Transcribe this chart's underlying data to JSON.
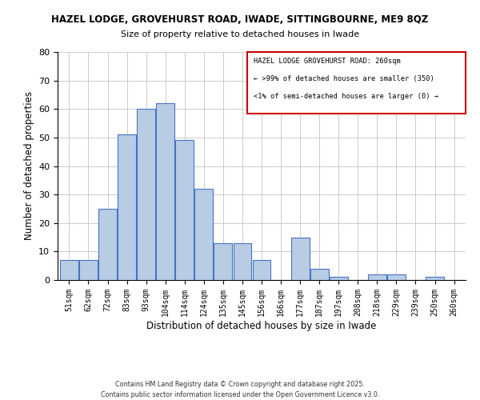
{
  "title1": "HAZEL LODGE, GROVEHURST ROAD, IWADE, SITTINGBOURNE, ME9 8QZ",
  "title2": "Size of property relative to detached houses in Iwade",
  "xlabel": "Distribution of detached houses by size in Iwade",
  "ylabel": "Number of detached properties",
  "bin_labels": [
    "51sqm",
    "62sqm",
    "72sqm",
    "83sqm",
    "93sqm",
    "104sqm",
    "114sqm",
    "124sqm",
    "135sqm",
    "145sqm",
    "156sqm",
    "166sqm",
    "177sqm",
    "187sqm",
    "197sqm",
    "208sqm",
    "218sqm",
    "229sqm",
    "239sqm",
    "250sqm",
    "260sqm"
  ],
  "bar_heights": [
    7,
    7,
    25,
    51,
    60,
    62,
    49,
    32,
    13,
    13,
    7,
    0,
    15,
    4,
    1,
    0,
    2,
    2,
    0,
    1,
    0
  ],
  "bar_color": "#b8cce4",
  "bar_edge_color": "#4472c4",
  "ylim": [
    0,
    80
  ],
  "yticks": [
    0,
    10,
    20,
    30,
    40,
    50,
    60,
    70,
    80
  ],
  "annotation_line1": "HAZEL LODGE GROVEHURST ROAD: 260sqm",
  "annotation_line2": "← >99% of detached houses are smaller (350)",
  "annotation_line3": "<1% of semi-detached houses are larger (0) →",
  "box_edge_color": "#cc0000",
  "footer1": "Contains HM Land Registry data © Crown copyright and database right 2025.",
  "footer2": "Contains public sector information licensed under the Open Government Licence v3.0.",
  "bg_color": "#ffffff",
  "grid_color": "#cccccc"
}
